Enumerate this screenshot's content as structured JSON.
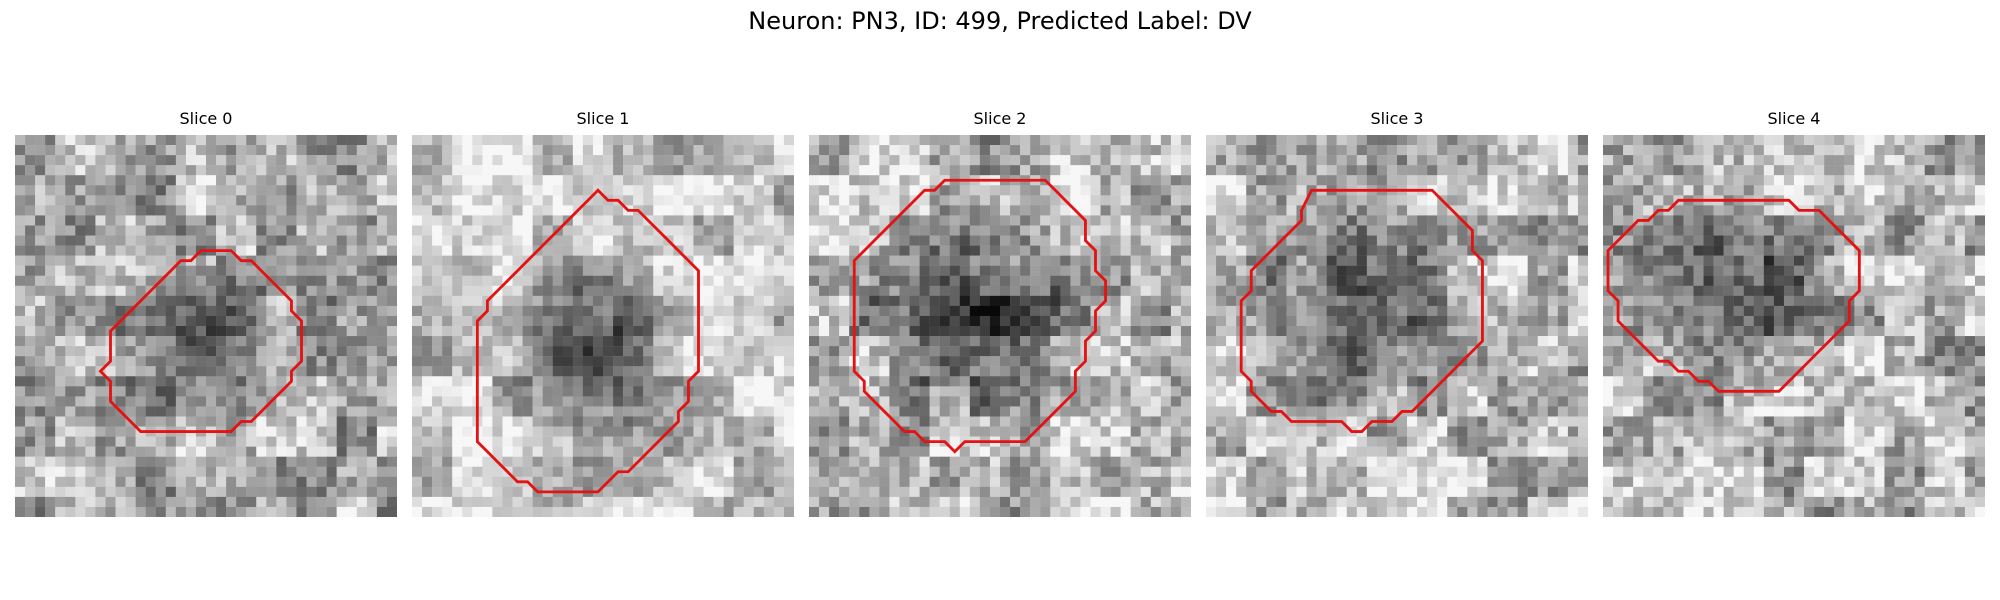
{
  "figure": {
    "title": "Neuron: PN3, ID: 499, Predicted Label: DV"
  },
  "colors": {
    "background": "#ffffff",
    "contour": "#e41212"
  },
  "slices": [
    {
      "title": "Slice 0",
      "seed": 17,
      "dark_center": 0.28,
      "blob_radius": 0.26,
      "blob_strength": 0.35,
      "base": 0.68,
      "noise": 0.18,
      "contour": [
        [
          19.5,
          11.5
        ],
        [
          21.5,
          11.5
        ],
        [
          22.5,
          12.5
        ],
        [
          23.5,
          12.5
        ],
        [
          24.5,
          13.5
        ],
        [
          25.5,
          14.5
        ],
        [
          26.5,
          15.5
        ],
        [
          27.5,
          16.5
        ],
        [
          27.5,
          17.5
        ],
        [
          28.5,
          18.5
        ],
        [
          28.5,
          20.5
        ],
        [
          28.5,
          22.5
        ],
        [
          27.5,
          23.5
        ],
        [
          27.5,
          24.5
        ],
        [
          26.5,
          25.5
        ],
        [
          25.5,
          26.5
        ],
        [
          24.5,
          27.5
        ],
        [
          23.5,
          28.5
        ],
        [
          22.5,
          28.5
        ],
        [
          21.5,
          29.5
        ],
        [
          19.5,
          29.5
        ],
        [
          17.5,
          29.5
        ],
        [
          15.5,
          29.5
        ],
        [
          13.5,
          29.5
        ],
        [
          12.5,
          29.5
        ],
        [
          11.5,
          28.5
        ],
        [
          10.5,
          27.5
        ],
        [
          9.5,
          26.5
        ],
        [
          9.5,
          24.5
        ],
        [
          8.5,
          23.5
        ],
        [
          9.5,
          22.5
        ],
        [
          9.5,
          20.5
        ],
        [
          9.5,
          19.5
        ],
        [
          10.5,
          18.5
        ],
        [
          11.5,
          17.5
        ],
        [
          12.5,
          16.5
        ],
        [
          13.5,
          15.5
        ],
        [
          14.5,
          14.5
        ],
        [
          15.5,
          13.5
        ],
        [
          16.5,
          12.5
        ],
        [
          17.5,
          12.5
        ],
        [
          18.5,
          11.5
        ]
      ]
    },
    {
      "title": "Slice 1",
      "seed": 41,
      "dark_center": 0.12,
      "blob_radius": 0.27,
      "blob_strength": 0.55,
      "base": 0.78,
      "noise": 0.14,
      "contour": [
        [
          18.5,
          5.5
        ],
        [
          19.5,
          6.5
        ],
        [
          20.5,
          6.5
        ],
        [
          21.5,
          7.5
        ],
        [
          22.5,
          7.5
        ],
        [
          23.5,
          8.5
        ],
        [
          24.5,
          9.5
        ],
        [
          25.5,
          10.5
        ],
        [
          26.5,
          11.5
        ],
        [
          27.5,
          12.5
        ],
        [
          28.5,
          13.5
        ],
        [
          28.5,
          15.5
        ],
        [
          28.5,
          17.5
        ],
        [
          28.5,
          19.5
        ],
        [
          28.5,
          21.5
        ],
        [
          28.5,
          23.5
        ],
        [
          27.5,
          24.5
        ],
        [
          27.5,
          26.5
        ],
        [
          26.5,
          27.5
        ],
        [
          26.5,
          28.5
        ],
        [
          25.5,
          29.5
        ],
        [
          24.5,
          30.5
        ],
        [
          23.5,
          31.5
        ],
        [
          22.5,
          32.5
        ],
        [
          21.5,
          33.5
        ],
        [
          20.5,
          33.5
        ],
        [
          19.5,
          34.5
        ],
        [
          18.5,
          35.5
        ],
        [
          17.5,
          35.5
        ],
        [
          15.5,
          35.5
        ],
        [
          13.5,
          35.5
        ],
        [
          12.5,
          35.5
        ],
        [
          11.5,
          34.5
        ],
        [
          10.5,
          34.5
        ],
        [
          9.5,
          33.5
        ],
        [
          8.5,
          32.5
        ],
        [
          7.5,
          31.5
        ],
        [
          6.5,
          30.5
        ],
        [
          6.5,
          28.5
        ],
        [
          6.5,
          26.5
        ],
        [
          6.5,
          24.5
        ],
        [
          6.5,
          22.5
        ],
        [
          6.5,
          20.5
        ],
        [
          6.5,
          18.5
        ],
        [
          7.5,
          17.5
        ],
        [
          7.5,
          16.5
        ],
        [
          8.5,
          15.5
        ],
        [
          9.5,
          14.5
        ],
        [
          10.5,
          13.5
        ],
        [
          11.5,
          12.5
        ],
        [
          12.5,
          11.5
        ],
        [
          13.5,
          10.5
        ],
        [
          14.5,
          9.5
        ],
        [
          15.5,
          8.5
        ],
        [
          16.5,
          7.5
        ],
        [
          17.5,
          6.5
        ]
      ]
    },
    {
      "title": "Slice 2",
      "seed": 73,
      "dark_center": 0.16,
      "blob_radius": 0.33,
      "blob_strength": 0.5,
      "base": 0.72,
      "noise": 0.2,
      "contour": [
        [
          17.5,
          4.5
        ],
        [
          19.5,
          4.5
        ],
        [
          21.5,
          4.5
        ],
        [
          23.5,
          4.5
        ],
        [
          24.5,
          5.5
        ],
        [
          25.5,
          6.5
        ],
        [
          26.5,
          7.5
        ],
        [
          27.5,
          8.5
        ],
        [
          27.5,
          10.5
        ],
        [
          28.5,
          11.5
        ],
        [
          28.5,
          13.5
        ],
        [
          29.5,
          14.5
        ],
        [
          29.5,
          16.5
        ],
        [
          28.5,
          17.5
        ],
        [
          28.5,
          19.5
        ],
        [
          27.5,
          20.5
        ],
        [
          27.5,
          22.5
        ],
        [
          26.5,
          23.5
        ],
        [
          26.5,
          25.5
        ],
        [
          25.5,
          26.5
        ],
        [
          24.5,
          27.5
        ],
        [
          23.5,
          28.5
        ],
        [
          22.5,
          29.5
        ],
        [
          21.5,
          30.5
        ],
        [
          20.5,
          30.5
        ],
        [
          19.5,
          30.5
        ],
        [
          17.5,
          30.5
        ],
        [
          15.5,
          30.5
        ],
        [
          14.5,
          31.5
        ],
        [
          13.5,
          30.5
        ],
        [
          11.5,
          30.5
        ],
        [
          10.5,
          29.5
        ],
        [
          9.5,
          29.5
        ],
        [
          8.5,
          28.5
        ],
        [
          7.5,
          27.5
        ],
        [
          6.5,
          26.5
        ],
        [
          5.5,
          25.5
        ],
        [
          5.5,
          24.5
        ],
        [
          4.5,
          23.5
        ],
        [
          4.5,
          21.5
        ],
        [
          4.5,
          19.5
        ],
        [
          4.5,
          17.5
        ],
        [
          4.5,
          15.5
        ],
        [
          4.5,
          13.5
        ],
        [
          4.5,
          12.5
        ],
        [
          5.5,
          11.5
        ],
        [
          6.5,
          10.5
        ],
        [
          7.5,
          9.5
        ],
        [
          8.5,
          8.5
        ],
        [
          9.5,
          7.5
        ],
        [
          10.5,
          6.5
        ],
        [
          11.5,
          5.5
        ],
        [
          12.5,
          5.5
        ],
        [
          13.5,
          4.5
        ],
        [
          14.5,
          4.5
        ],
        [
          15.5,
          4.5
        ]
      ]
    },
    {
      "title": "Slice 3",
      "seed": 97,
      "dark_center": 0.22,
      "blob_radius": 0.32,
      "blob_strength": 0.42,
      "base": 0.74,
      "noise": 0.18,
      "contour": [
        [
          10.5,
          5.5
        ],
        [
          12.5,
          5.5
        ],
        [
          14.5,
          5.5
        ],
        [
          16.5,
          5.5
        ],
        [
          18.5,
          5.5
        ],
        [
          20.5,
          5.5
        ],
        [
          22.5,
          5.5
        ],
        [
          23.5,
          6.5
        ],
        [
          24.5,
          7.5
        ],
        [
          25.5,
          8.5
        ],
        [
          26.5,
          9.5
        ],
        [
          26.5,
          11.5
        ],
        [
          27.5,
          12.5
        ],
        [
          27.5,
          14.5
        ],
        [
          27.5,
          16.5
        ],
        [
          27.5,
          18.5
        ],
        [
          27.5,
          20.5
        ],
        [
          26.5,
          21.5
        ],
        [
          25.5,
          22.5
        ],
        [
          24.5,
          23.5
        ],
        [
          23.5,
          24.5
        ],
        [
          22.5,
          25.5
        ],
        [
          21.5,
          26.5
        ],
        [
          20.5,
          27.5
        ],
        [
          19.5,
          27.5
        ],
        [
          18.5,
          28.5
        ],
        [
          16.5,
          28.5
        ],
        [
          15.5,
          29.5
        ],
        [
          14.5,
          29.5
        ],
        [
          13.5,
          28.5
        ],
        [
          11.5,
          28.5
        ],
        [
          9.5,
          28.5
        ],
        [
          8.5,
          28.5
        ],
        [
          7.5,
          27.5
        ],
        [
          6.5,
          27.5
        ],
        [
          5.5,
          26.5
        ],
        [
          4.5,
          25.5
        ],
        [
          4.5,
          24.5
        ],
        [
          3.5,
          23.5
        ],
        [
          3.5,
          21.5
        ],
        [
          3.5,
          19.5
        ],
        [
          3.5,
          17.5
        ],
        [
          3.5,
          16.5
        ],
        [
          4.5,
          15.5
        ],
        [
          4.5,
          13.5
        ],
        [
          5.5,
          12.5
        ],
        [
          6.5,
          11.5
        ],
        [
          7.5,
          10.5
        ],
        [
          8.5,
          9.5
        ],
        [
          9.5,
          8.5
        ],
        [
          9.5,
          7.5
        ]
      ]
    },
    {
      "title": "Slice 4",
      "seed": 131,
      "dark_center": 0.22,
      "blob_radius": 0.3,
      "blob_strength": 0.42,
      "base": 0.72,
      "noise": 0.2,
      "contour": [
        [
          8.5,
          6.5
        ],
        [
          10.5,
          6.5
        ],
        [
          12.5,
          6.5
        ],
        [
          14.5,
          6.5
        ],
        [
          16.5,
          6.5
        ],
        [
          18.5,
          6.5
        ],
        [
          19.5,
          7.5
        ],
        [
          21.5,
          7.5
        ],
        [
          22.5,
          8.5
        ],
        [
          23.5,
          9.5
        ],
        [
          24.5,
          10.5
        ],
        [
          25.5,
          11.5
        ],
        [
          25.5,
          13.5
        ],
        [
          25.5,
          15.5
        ],
        [
          24.5,
          16.5
        ],
        [
          24.5,
          18.5
        ],
        [
          23.5,
          19.5
        ],
        [
          22.5,
          20.5
        ],
        [
          21.5,
          21.5
        ],
        [
          20.5,
          22.5
        ],
        [
          19.5,
          23.5
        ],
        [
          18.5,
          24.5
        ],
        [
          17.5,
          25.5
        ],
        [
          16.5,
          25.5
        ],
        [
          15.5,
          25.5
        ],
        [
          13.5,
          25.5
        ],
        [
          11.5,
          25.5
        ],
        [
          10.5,
          24.5
        ],
        [
          9.5,
          24.5
        ],
        [
          8.5,
          23.5
        ],
        [
          7.5,
          23.5
        ],
        [
          6.5,
          22.5
        ],
        [
          5.5,
          22.5
        ],
        [
          4.5,
          21.5
        ],
        [
          3.5,
          20.5
        ],
        [
          2.5,
          19.5
        ],
        [
          1.5,
          18.5
        ],
        [
          1.5,
          16.5
        ],
        [
          0.5,
          15.5
        ],
        [
          0.5,
          13.5
        ],
        [
          0.5,
          11.5
        ],
        [
          1.5,
          10.5
        ],
        [
          2.5,
          9.5
        ],
        [
          3.5,
          8.5
        ],
        [
          4.5,
          8.5
        ],
        [
          5.5,
          7.5
        ],
        [
          6.5,
          7.5
        ],
        [
          7.5,
          6.5
        ]
      ]
    }
  ]
}
